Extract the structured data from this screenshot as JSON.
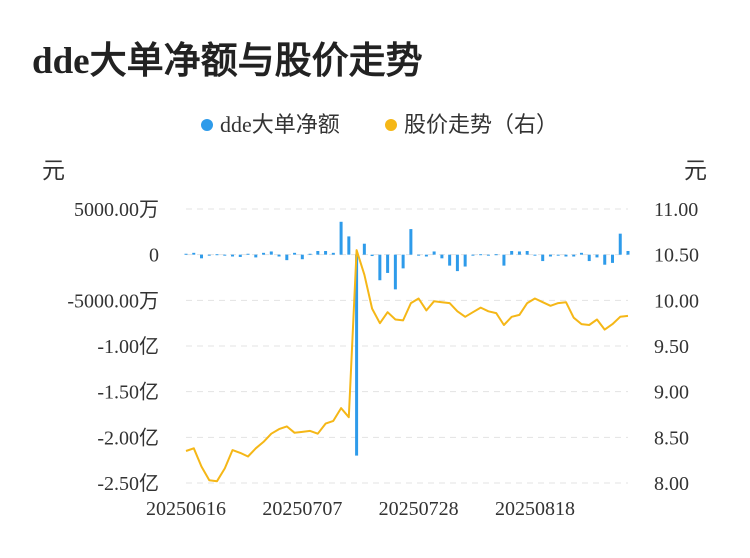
{
  "title": "dde大单净额与股价走势",
  "colors": {
    "bar": "#2e9bea",
    "line": "#f5b717",
    "grid": "#e3e3e3",
    "text": "#333333"
  },
  "chart_data": {
    "type": "bar+line",
    "title": "dde大单净额与股价走势",
    "legend": {
      "placement": "top-center",
      "items": [
        {
          "label": "dde大单净额",
          "color": "#2e9bea",
          "icon": "circle"
        },
        {
          "label": "股价走势（右）",
          "color": "#f5b717",
          "icon": "circle"
        }
      ]
    },
    "left_axis": {
      "unit": "元",
      "range": [
        -250000000,
        50000000
      ],
      "ticks": [
        {
          "value": 50000000,
          "label": "5000.00万"
        },
        {
          "value": 0,
          "label": "0"
        },
        {
          "value": -50000000,
          "label": "-5000.00万"
        },
        {
          "value": -100000000,
          "label": "-1.00亿"
        },
        {
          "value": -150000000,
          "label": "-1.50亿"
        },
        {
          "value": -200000000,
          "label": "-2.00亿"
        },
        {
          "value": -250000000,
          "label": "-2.50亿"
        }
      ]
    },
    "right_axis": {
      "unit": "元",
      "range": [
        8.0,
        11.0
      ],
      "ticks": [
        {
          "value": 11.0,
          "label": "11.00"
        },
        {
          "value": 10.5,
          "label": "10.50"
        },
        {
          "value": 10.0,
          "label": "10.00"
        },
        {
          "value": 9.5,
          "label": "9.50"
        },
        {
          "value": 9.0,
          "label": "9.00"
        },
        {
          "value": 8.5,
          "label": "8.50"
        },
        {
          "value": 8.0,
          "label": "8.00"
        }
      ]
    },
    "x_axis": {
      "tick_labels": [
        {
          "index": 0,
          "label": "20250616"
        },
        {
          "index": 15,
          "label": "20250707"
        },
        {
          "index": 30,
          "label": "20250728"
        },
        {
          "index": 45,
          "label": "20250818"
        }
      ]
    },
    "grid": true,
    "series": [
      {
        "name": "dde大单净额",
        "type": "bar",
        "axis": "left",
        "values": [
          1000000,
          2000000,
          -4000000,
          -1000000,
          500000,
          -1000000,
          -2000000,
          -2500000,
          1000000,
          -3000000,
          2000000,
          3500000,
          -2000000,
          -6000000,
          2000000,
          -5000000,
          1000000,
          4000000,
          4000000,
          2000000,
          36000000,
          20000000,
          -220000000,
          12000000,
          -1500000,
          -28000000,
          -20000000,
          -38000000,
          -15000000,
          28000000,
          -1000000,
          -2000000,
          3500000,
          -4000000,
          -12000000,
          -18000000,
          -13000000,
          -500000,
          500000,
          -1000000,
          500000,
          -12000000,
          4000000,
          3500000,
          4000000,
          -1000000,
          -7000000,
          -2000000,
          -500000,
          -2000000,
          -2000000,
          2000000,
          -7000000,
          -3000000,
          -11000000,
          -9000000,
          23000000,
          4000000
        ]
      },
      {
        "name": "股价走势（右）",
        "type": "line",
        "axis": "right",
        "values": [
          8.35,
          8.38,
          8.18,
          8.03,
          8.02,
          8.16,
          8.36,
          8.33,
          8.29,
          8.38,
          8.45,
          8.54,
          8.59,
          8.62,
          8.55,
          8.56,
          8.57,
          8.54,
          8.65,
          8.68,
          8.82,
          8.72,
          10.55,
          10.28,
          9.91,
          9.75,
          9.87,
          9.79,
          9.78,
          9.97,
          10.02,
          9.89,
          9.99,
          9.98,
          9.97,
          9.88,
          9.82,
          9.87,
          9.92,
          9.88,
          9.86,
          9.73,
          9.82,
          9.84,
          9.97,
          10.02,
          9.98,
          9.94,
          9.97,
          9.98,
          9.81,
          9.74,
          9.73,
          9.79,
          9.68,
          9.74,
          9.82,
          9.83
        ]
      }
    ]
  }
}
